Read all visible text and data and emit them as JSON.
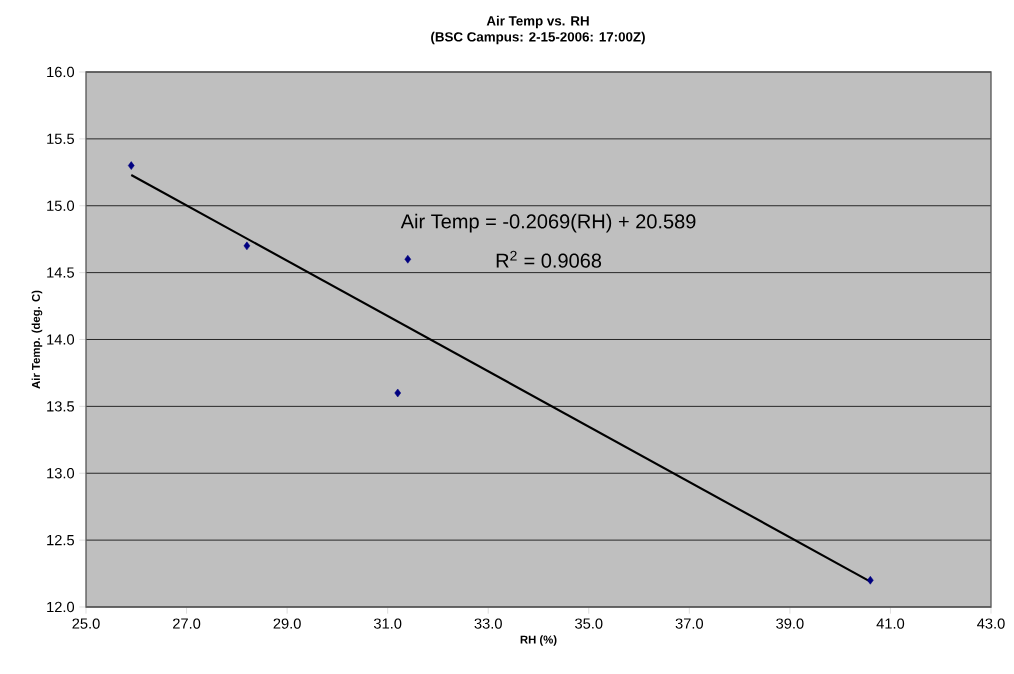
{
  "chart_data": {
    "type": "scatter",
    "title": "Air Temp vs. RH",
    "subtitle": "(BSC Campus: 2-15-2006: 17:00Z)",
    "xlabel": "RH (%)",
    "ylabel": "Air Temp. (deg. C)",
    "annotations": [
      "Air Temp = -0.2069(RH) + 20.589",
      "R$^{2}$ = 0.9068"
    ],
    "series": [
      {
        "color": "#000080",
        "marker": "diamond",
        "x": [
          25.9,
          28.2,
          31.4,
          31.2,
          40.6
        ],
        "values": [
          15.3,
          14.7,
          14.6,
          13.6,
          12.2
        ]
      },
      {
        "type": "line",
        "color": "#000000",
        "marker": "none",
        "x": [
          25.9,
          40.6
        ],
        "values": [
          15.23,
          12.19
        ]
      }
    ],
    "xlim": [
      25,
      43
    ],
    "ylim": [
      12,
      16
    ],
    "xticks": [
      {
        "value": 25,
        "label": "25.0"
      },
      {
        "value": 27,
        "label": "27.0"
      },
      {
        "value": 29,
        "label": "29.0"
      },
      {
        "value": 31,
        "label": "31.0"
      },
      {
        "value": 33,
        "label": "33.0"
      },
      {
        "value": 35,
        "label": "35.0"
      },
      {
        "value": 37,
        "label": "37.0"
      },
      {
        "value": 39,
        "label": "39.0"
      },
      {
        "value": 41,
        "label": "41.0"
      },
      {
        "value": 43,
        "label": "43.0"
      }
    ],
    "yticks": [
      {
        "value": 12,
        "label": "12.0"
      },
      {
        "value": 12.5,
        "label": "12.5"
      },
      {
        "value": 13,
        "label": "13.0"
      },
      {
        "value": 13.5,
        "label": "13.5"
      },
      {
        "value": 14,
        "label": "14.0"
      },
      {
        "value": 14.5,
        "label": "14.5"
      },
      {
        "value": 15,
        "label": "15.0"
      },
      {
        "value": 15.5,
        "label": "15.5"
      },
      {
        "value": 16,
        "label": "16.0"
      }
    ],
    "grid": "y"
  }
}
